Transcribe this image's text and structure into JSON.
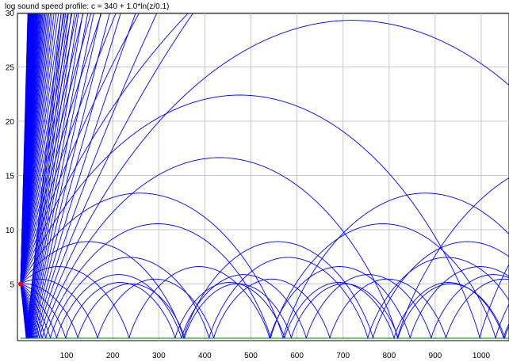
{
  "chart_data": {
    "type": "line",
    "title": "log sound speed profile: c = 340 + 1.0*ln(z/0.1)",
    "xlabel": "",
    "ylabel": "",
    "xlim": [
      0,
      1050
    ],
    "ylim": [
      0,
      30
    ],
    "x_ticks": [
      100,
      200,
      300,
      400,
      500,
      600,
      700,
      800,
      900,
      1000
    ],
    "y_ticks": [
      5,
      10,
      15,
      20,
      25,
      30
    ],
    "grid": true,
    "source": {
      "x": 0,
      "y": 5,
      "color": "#ff0000"
    },
    "ground": {
      "y": 0,
      "color": "#008000"
    },
    "ray_color": "#0000ff",
    "sound_speed_profile": {
      "c0": 340,
      "a": 1.0,
      "z0": 0.1
    },
    "rays": {
      "count": 80,
      "launch_angle_deg_min": -22,
      "launch_angle_deg_max": 58,
      "ground_reflection": true
    }
  }
}
